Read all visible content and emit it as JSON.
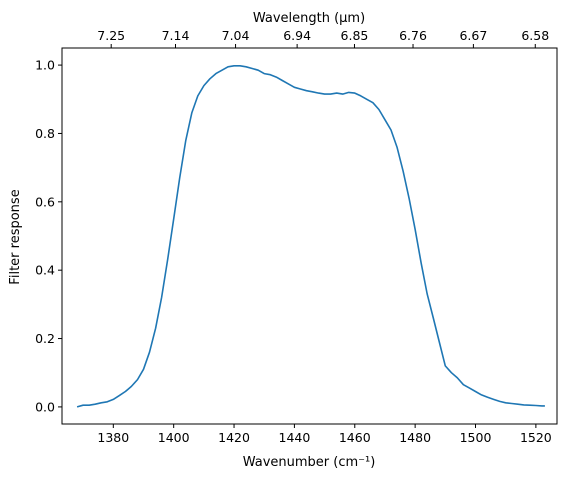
{
  "chart_data": {
    "type": "line",
    "xlabel": "Wavenumber (cm⁻¹)",
    "ylabel": "Filter response",
    "top_xlabel": "Wavelength (μm)",
    "xlim": [
      1363,
      1527
    ],
    "ylim": [
      -0.05,
      1.05
    ],
    "x_ticks": [
      1380,
      1400,
      1420,
      1440,
      1460,
      1480,
      1500,
      1520
    ],
    "x_tick_labels": [
      "1380",
      "1400",
      "1420",
      "1440",
      "1460",
      "1480",
      "1500",
      "1520"
    ],
    "y_ticks": [
      0.0,
      0.2,
      0.4,
      0.6,
      0.8,
      1.0
    ],
    "y_tick_labels": [
      "0.0",
      "0.2",
      "0.4",
      "0.6",
      "0.8",
      "1.0"
    ],
    "top_ticks": [
      {
        "wavenumber": 1379.3,
        "label": "7.25"
      },
      {
        "wavenumber": 1400.6,
        "label": "7.14"
      },
      {
        "wavenumber": 1420.5,
        "label": "7.04"
      },
      {
        "wavenumber": 1440.9,
        "label": "6.94"
      },
      {
        "wavenumber": 1459.9,
        "label": "6.85"
      },
      {
        "wavenumber": 1479.3,
        "label": "6.76"
      },
      {
        "wavenumber": 1499.3,
        "label": "6.67"
      },
      {
        "wavenumber": 1519.8,
        "label": "6.58"
      }
    ],
    "grid": false,
    "color": "#1f77b4",
    "series": [
      {
        "x": [
          1368,
          1370,
          1372,
          1374,
          1376,
          1378,
          1380,
          1382,
          1384,
          1386,
          1388,
          1390,
          1392,
          1394,
          1396,
          1398,
          1400,
          1402,
          1404,
          1406,
          1408,
          1410,
          1412,
          1414,
          1416,
          1418,
          1420,
          1422,
          1424,
          1426,
          1428,
          1430,
          1432,
          1434,
          1436,
          1438,
          1440,
          1442,
          1444,
          1446,
          1448,
          1450,
          1452,
          1454,
          1456,
          1458,
          1460,
          1462,
          1464,
          1466,
          1468,
          1470,
          1472,
          1474,
          1476,
          1478,
          1480,
          1482,
          1484,
          1486,
          1488,
          1490,
          1492,
          1494,
          1496,
          1498,
          1500,
          1502,
          1504,
          1506,
          1508,
          1510,
          1512,
          1514,
          1516,
          1518,
          1520,
          1522,
          1523
        ],
        "y": [
          0.0,
          0.005,
          0.005,
          0.008,
          0.012,
          0.015,
          0.022,
          0.033,
          0.045,
          0.06,
          0.08,
          0.11,
          0.16,
          0.23,
          0.32,
          0.43,
          0.55,
          0.67,
          0.78,
          0.86,
          0.91,
          0.94,
          0.96,
          0.975,
          0.985,
          0.995,
          0.998,
          0.998,
          0.995,
          0.99,
          0.985,
          0.975,
          0.972,
          0.965,
          0.955,
          0.945,
          0.935,
          0.93,
          0.925,
          0.922,
          0.918,
          0.915,
          0.915,
          0.918,
          0.915,
          0.92,
          0.918,
          0.91,
          0.9,
          0.89,
          0.87,
          0.84,
          0.81,
          0.76,
          0.69,
          0.61,
          0.52,
          0.42,
          0.33,
          0.26,
          0.19,
          0.12,
          0.1,
          0.085,
          0.065,
          0.055,
          0.045,
          0.035,
          0.028,
          0.022,
          0.016,
          0.012,
          0.01,
          0.008,
          0.006,
          0.005,
          0.004,
          0.003,
          0.003
        ]
      }
    ]
  }
}
